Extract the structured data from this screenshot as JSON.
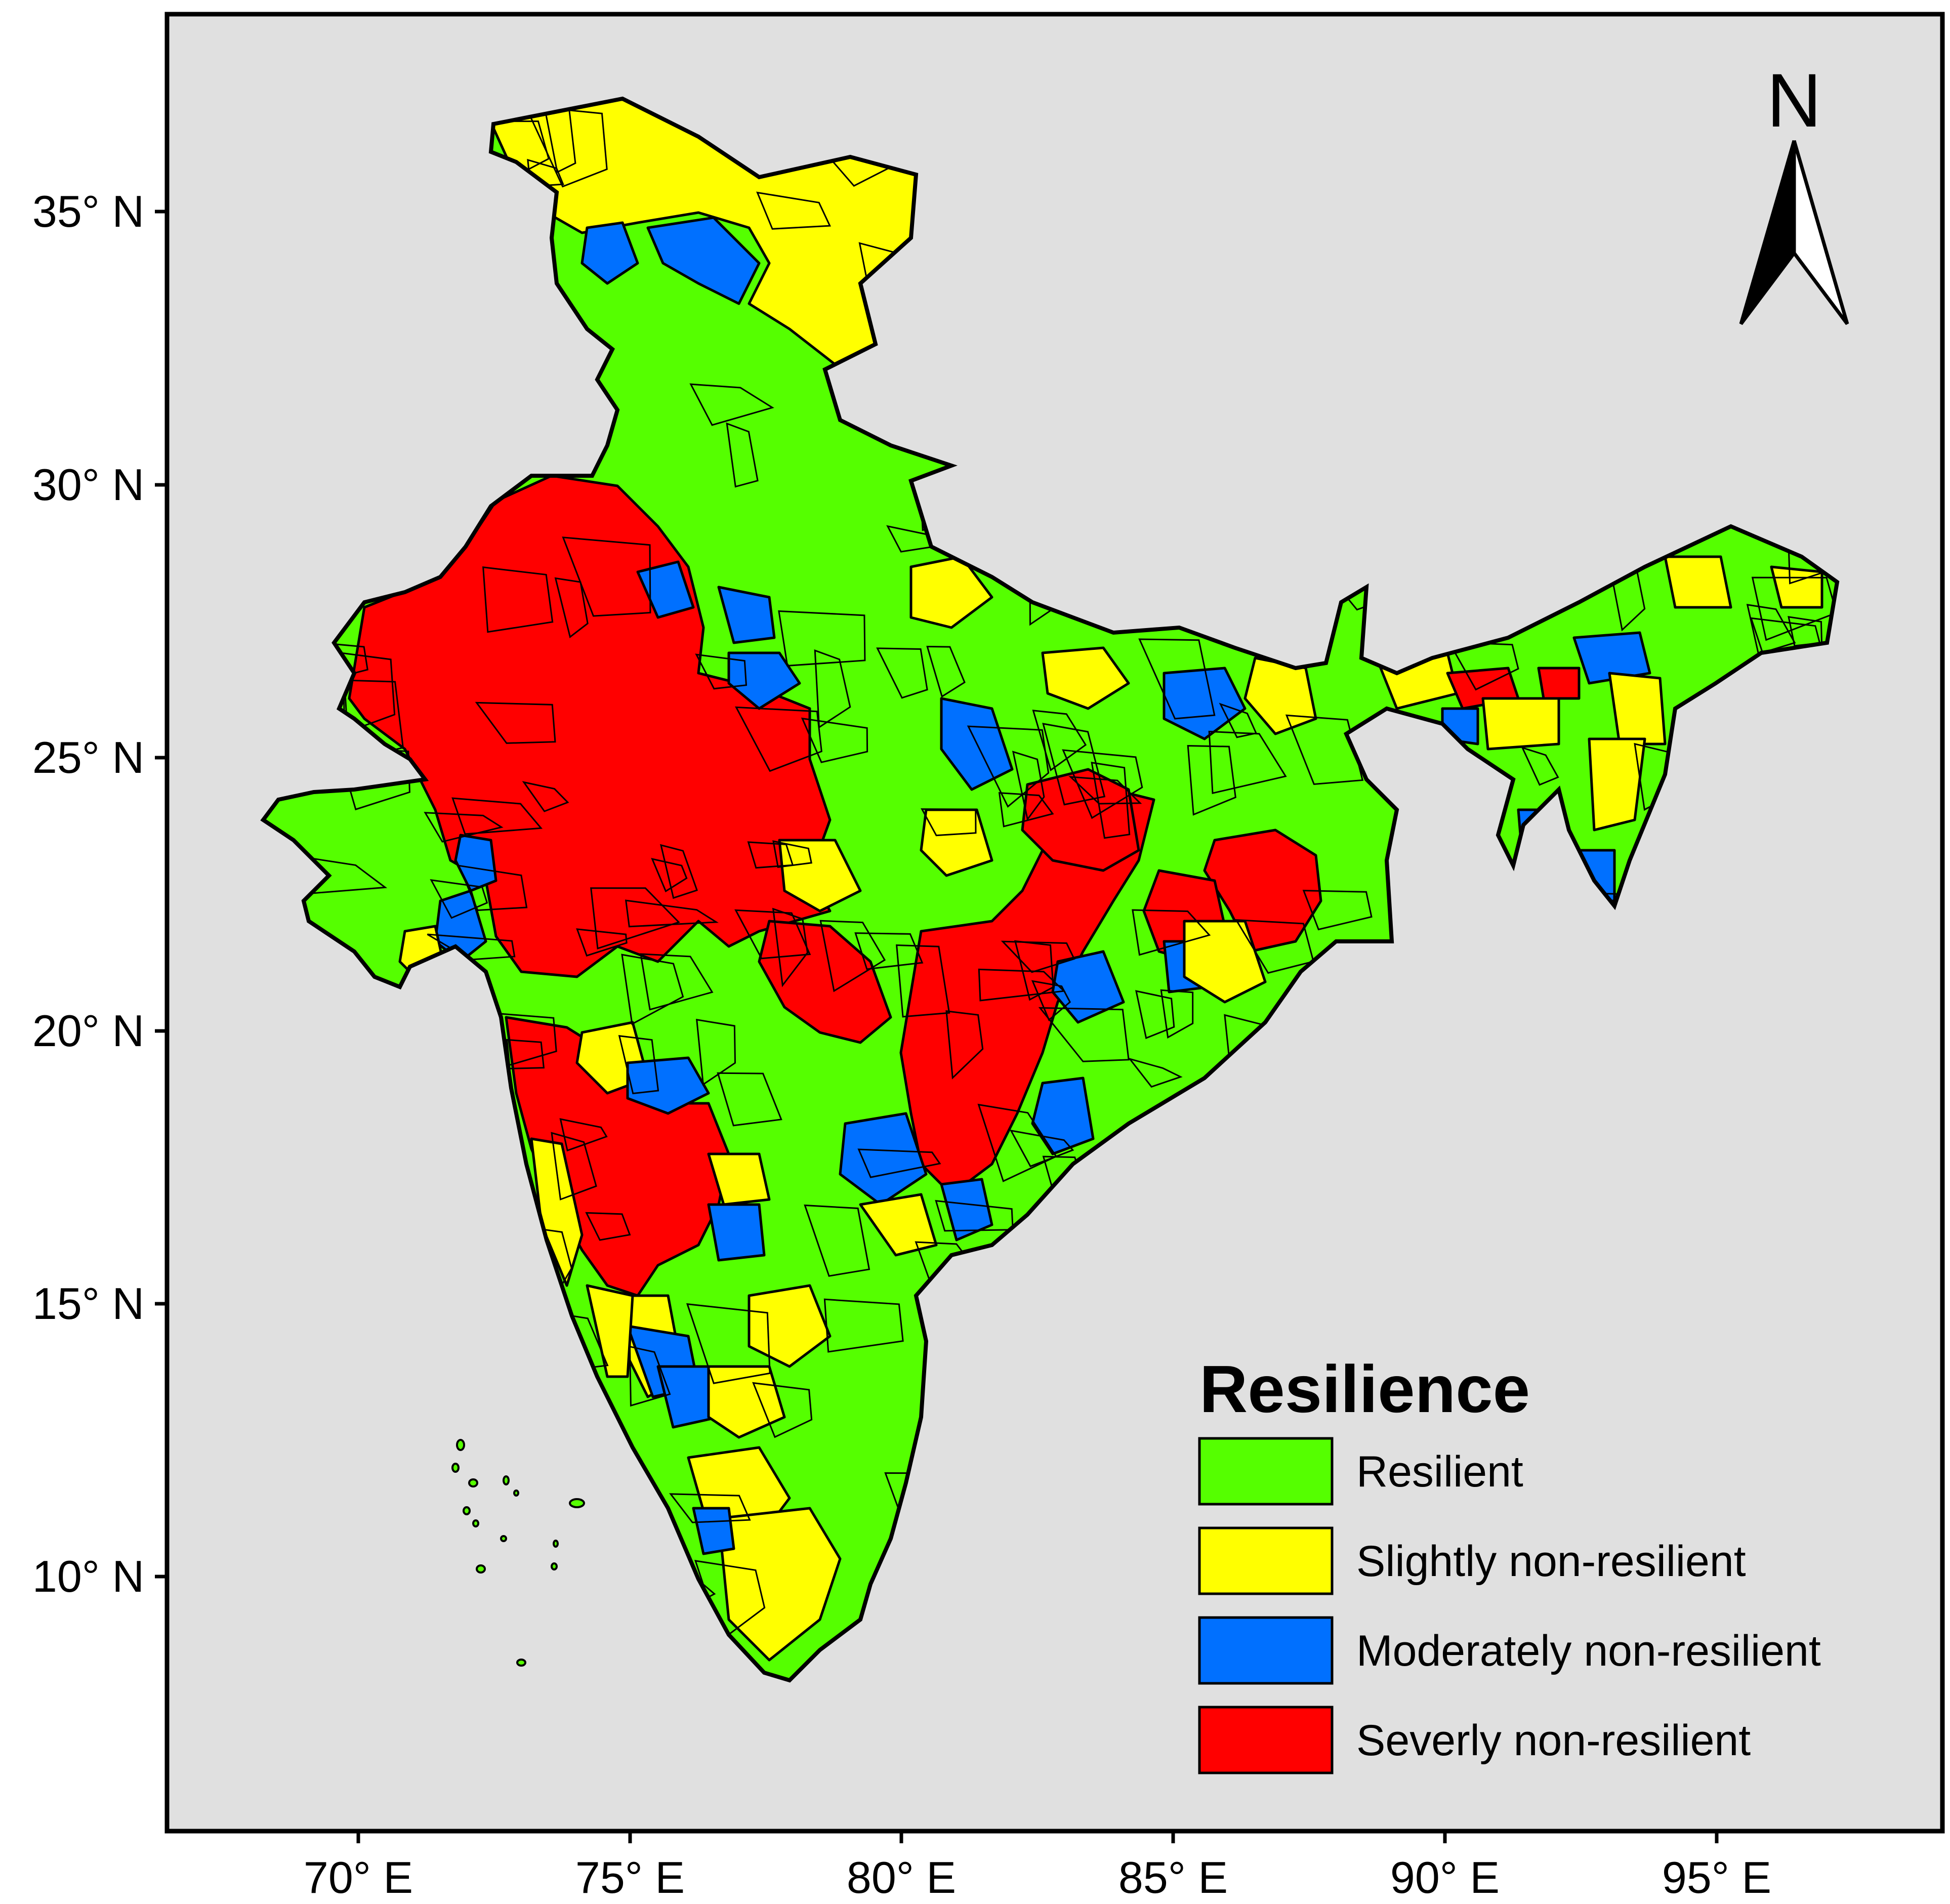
{
  "map": {
    "background_color": "#e0e0e0",
    "y_ticks": [
      "35° N",
      "30° N",
      "25° N",
      "20° N",
      "15° N",
      "10° N"
    ],
    "x_ticks": [
      "70° E",
      "75° E",
      "80° E",
      "85° E",
      "90° E",
      "95° E"
    ],
    "north_arrow": {
      "letter": "N",
      "icon": "north-arrow-icon"
    }
  },
  "legend": {
    "title": "Resilience",
    "items": [
      {
        "label": "Resilient",
        "color": "#55ff00"
      },
      {
        "label": "Slightly non-resilient",
        "color": "#ffff00"
      },
      {
        "label": "Moderately non-resilient",
        "color": "#0070ff"
      },
      {
        "label": "Severly non-resilient",
        "color": "#ff0000"
      }
    ]
  }
}
